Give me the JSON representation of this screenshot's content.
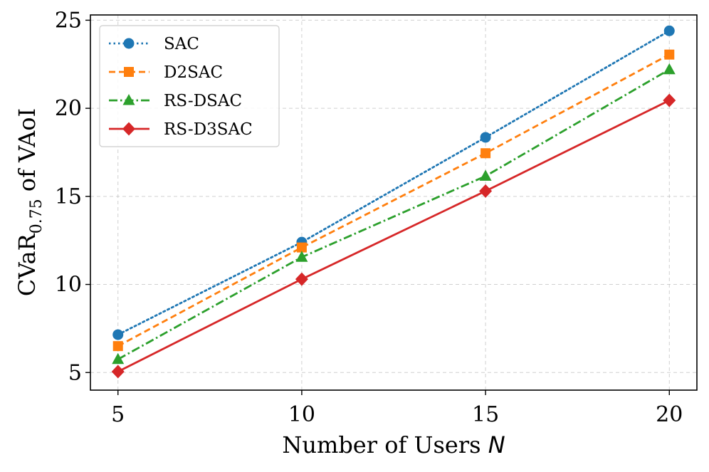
{
  "chart_data": {
    "type": "line",
    "title": "",
    "xlabel": "Number of Users",
    "xlabel_symbol": "N",
    "ylabel": "CVaR",
    "ylabel_subscript": "0.75",
    "ylabel_suffix": " of VAoI",
    "x": [
      5,
      10,
      15,
      20
    ],
    "xlim": [
      4.25,
      20.75
    ],
    "ylim": [
      4.0,
      25.3
    ],
    "xticks": [
      5,
      10,
      15,
      20
    ],
    "yticks": [
      5,
      10,
      15,
      20,
      25
    ],
    "grid": true,
    "legend_position": "top-left",
    "series": [
      {
        "name": "SAC",
        "values": [
          7.15,
          12.4,
          18.35,
          24.4
        ],
        "color": "#1f77b4",
        "linestyle": "dotted",
        "marker": "circle"
      },
      {
        "name": "D2SAC",
        "values": [
          6.5,
          12.1,
          17.45,
          23.05
        ],
        "color": "#ff7f0e",
        "linestyle": "dashed",
        "marker": "square"
      },
      {
        "name": "RS-DSAC",
        "values": [
          5.75,
          11.55,
          16.15,
          22.2
        ],
        "color": "#2ca02c",
        "linestyle": "dashdot",
        "marker": "triangle"
      },
      {
        "name": "RS-D3SAC",
        "values": [
          5.05,
          10.3,
          15.3,
          20.45
        ],
        "color": "#d62728",
        "linestyle": "solid",
        "marker": "diamond"
      }
    ]
  }
}
